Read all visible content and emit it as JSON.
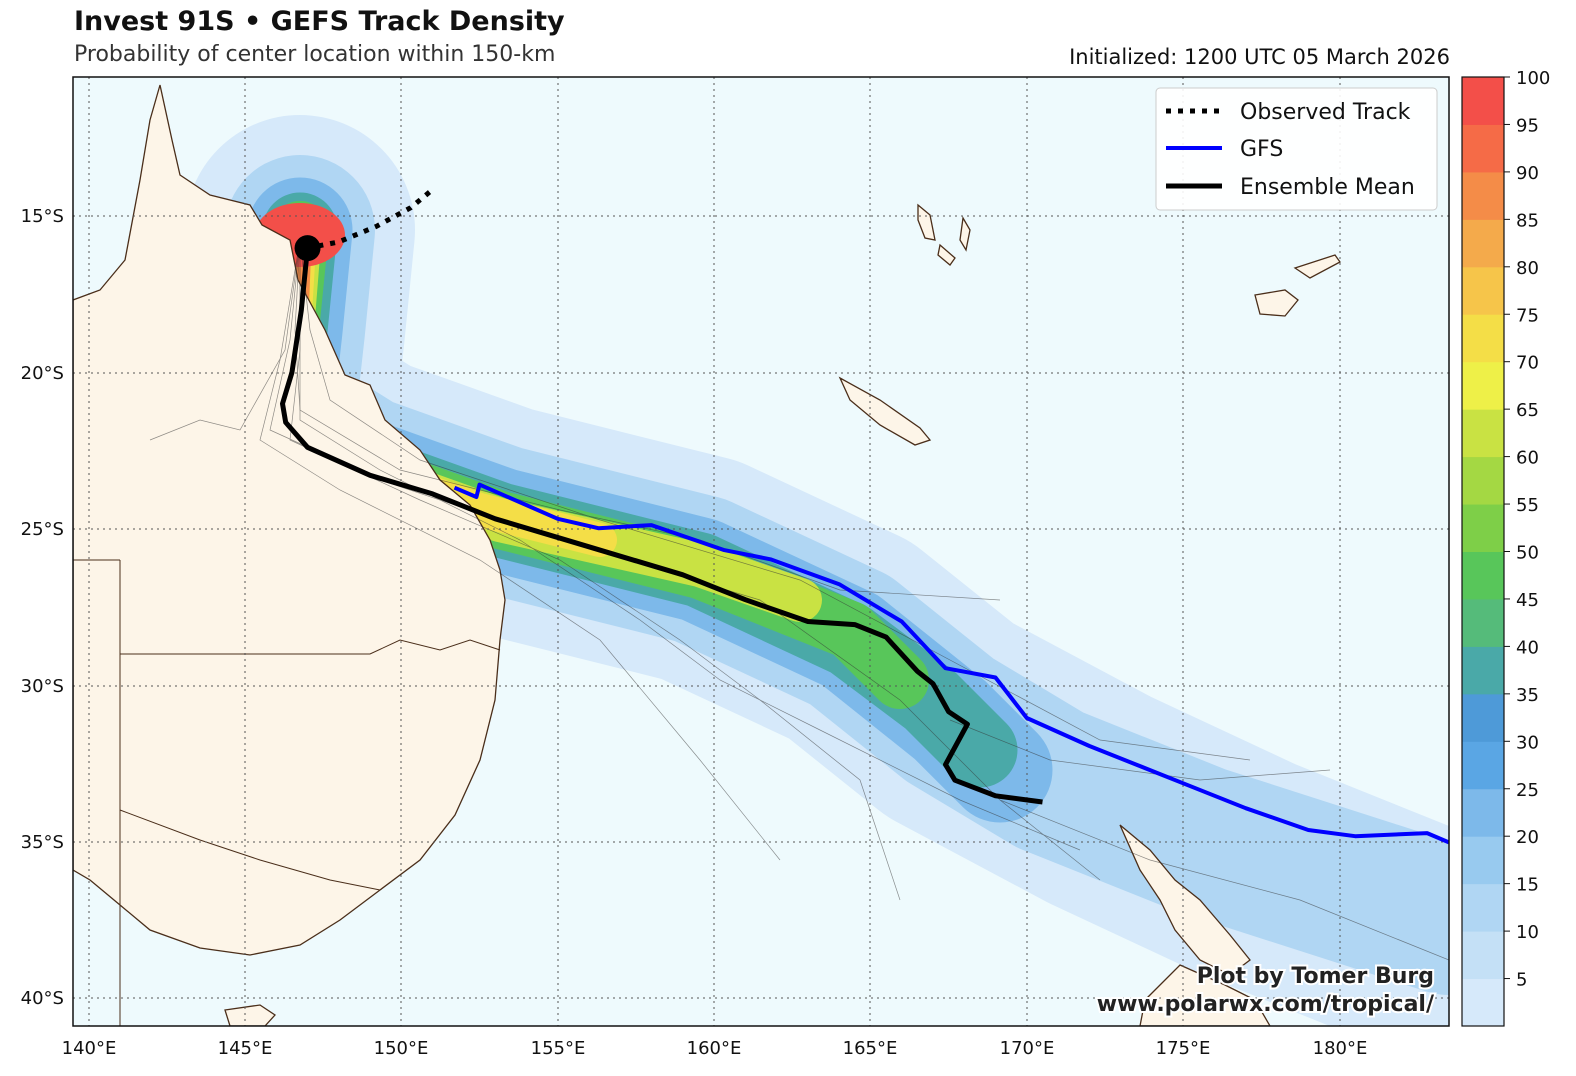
{
  "header": {
    "title": "Invest 91S • GEFS Track Density",
    "subtitle": "Probability of center location within 150-km",
    "initialized": "Initialized: 1200 UTC 05 March 2026"
  },
  "legend": {
    "observed": "Observed Track",
    "gfs": "GFS",
    "ensemble": "Ensemble Mean",
    "colors": {
      "gfs": "#0000ff",
      "ensemble": "#000000",
      "observed": "#000000"
    }
  },
  "credit": {
    "line1": "Plot by Tomer Burg",
    "line2": "www.polarwx.com/tropical/"
  },
  "map": {
    "lon_range": [
      139.5,
      183.5
    ],
    "lat_range": [
      -41,
      -10.5
    ],
    "lon_ticks": [
      "140°E",
      "145°E",
      "150°E",
      "155°E",
      "160°E",
      "165°E",
      "170°E",
      "175°E",
      "180°E"
    ],
    "lat_ticks": [
      "15°S",
      "20°S",
      "25°S",
      "30°S",
      "35°S",
      "40°S"
    ],
    "grid": true,
    "ocean_color": "#eefafd",
    "land_color": "#fdf5e8",
    "coast_color": "#4a2e1a"
  },
  "colorbar": {
    "labels": [
      "5",
      "10",
      "15",
      "20",
      "25",
      "30",
      "35",
      "40",
      "45",
      "50",
      "55",
      "60",
      "65",
      "70",
      "75",
      "80",
      "85",
      "90",
      "95",
      "100"
    ],
    "colors": [
      "#d6e9fa",
      "#c4e0f6",
      "#b0d6f3",
      "#98caef",
      "#7db9ea",
      "#5aa6e4",
      "#4e9ad8",
      "#4aa9a8",
      "#55bb7a",
      "#58c65a",
      "#7ecf48",
      "#a4d843",
      "#c9e243",
      "#eef048",
      "#f4de47",
      "#f6c54a",
      "#f4aa4b",
      "#f48c48",
      "#f56b47",
      "#f34f49"
    ]
  },
  "tracks": {
    "observed": [
      [
        150.9,
        -14.2
      ],
      [
        150.3,
        -14.7
      ],
      [
        149.2,
        -15.3
      ],
      [
        148.0,
        -15.8
      ],
      [
        147.0,
        -16.0
      ]
    ],
    "gfs": [
      [
        151.7,
        -23.7
      ],
      [
        152.4,
        -24.0
      ],
      [
        152.5,
        -23.6
      ],
      [
        155.0,
        -24.7
      ],
      [
        156.3,
        -25.0
      ],
      [
        158.0,
        -24.9
      ],
      [
        160.3,
        -25.7
      ],
      [
        161.8,
        -26.0
      ],
      [
        164.0,
        -26.8
      ],
      [
        166.0,
        -28.0
      ],
      [
        167.4,
        -29.5
      ],
      [
        169.0,
        -29.8
      ],
      [
        170.0,
        -31.1
      ],
      [
        172.0,
        -32.0
      ],
      [
        175.0,
        -33.2
      ],
      [
        177.0,
        -34.0
      ],
      [
        179.0,
        -34.7
      ],
      [
        180.5,
        -34.9
      ],
      [
        182.8,
        -34.8
      ],
      [
        183.5,
        -35.1
      ]
    ],
    "ensemble": [
      [
        147.0,
        -16.0
      ],
      [
        146.8,
        -18.0
      ],
      [
        146.5,
        -20.0
      ],
      [
        146.2,
        -21.0
      ],
      [
        146.3,
        -21.6
      ],
      [
        147.0,
        -22.4
      ],
      [
        149.0,
        -23.3
      ],
      [
        151.0,
        -23.9
      ],
      [
        153.0,
        -24.7
      ],
      [
        156.0,
        -25.6
      ],
      [
        159.0,
        -26.5
      ],
      [
        161.0,
        -27.3
      ],
      [
        163.0,
        -28.0
      ],
      [
        164.5,
        -28.1
      ],
      [
        165.5,
        -28.5
      ],
      [
        166.5,
        -29.6
      ],
      [
        167.0,
        -30.0
      ],
      [
        167.5,
        -30.9
      ],
      [
        168.1,
        -31.3
      ],
      [
        167.4,
        -32.6
      ],
      [
        167.7,
        -33.1
      ],
      [
        169.0,
        -33.6
      ],
      [
        170.5,
        -33.8
      ]
    ]
  }
}
